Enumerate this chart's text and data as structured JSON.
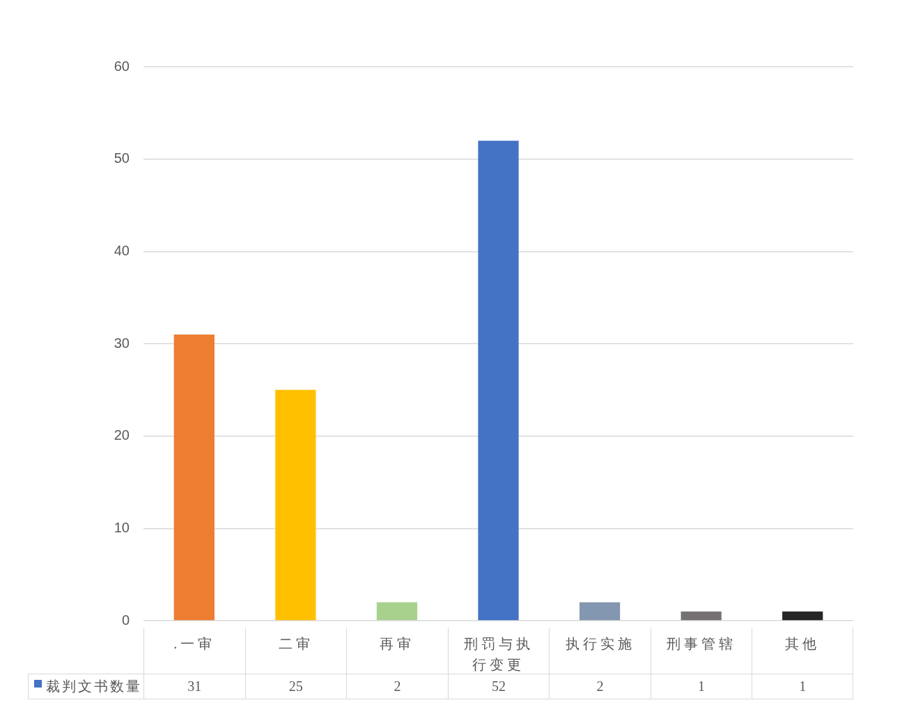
{
  "chart_data": {
    "type": "bar",
    "categories": [
      ".一审",
      "二审",
      "再审",
      "刑罚与执行变更",
      "执行实施",
      "刑事管辖",
      "其他"
    ],
    "series": [
      {
        "name": "裁判文书数量",
        "color": "#4472c4",
        "colors": [
          "#ed7d31",
          "#ffc000",
          "#a9d18e",
          "#4472c4",
          "#8497b0",
          "#767171",
          "#262626"
        ],
        "values": [
          31,
          25,
          2,
          52,
          2,
          1,
          1
        ]
      }
    ],
    "ylim": [
      0,
      60
    ],
    "yticks": [
      0,
      10,
      20,
      30,
      40,
      50,
      60
    ],
    "grid": "y",
    "legend": "bottom",
    "data_labels": true
  }
}
